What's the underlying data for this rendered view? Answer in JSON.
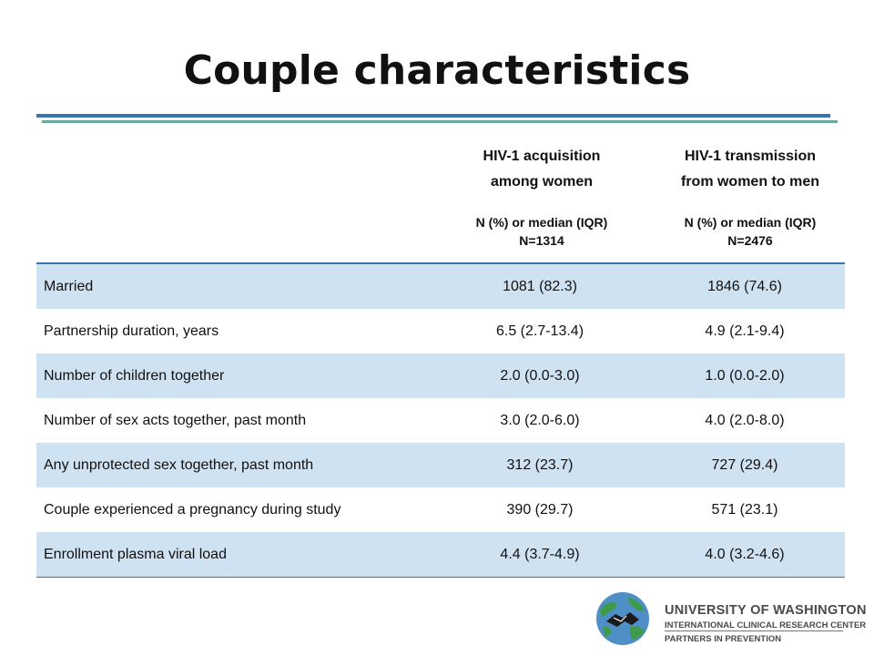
{
  "slide": {
    "title": "Couple characteristics"
  },
  "table": {
    "columns": [
      {
        "heading_line1": "HIV-1 acquisition",
        "heading_line2": "among women",
        "sub_line1": "N (%) or median (IQR)",
        "sub_line2": "N=1314"
      },
      {
        "heading_line1": "HIV-1 transmission",
        "heading_line2": "from women to men",
        "sub_line1": "N (%) or median (IQR)",
        "sub_line2": "N=2476"
      }
    ],
    "rows": [
      {
        "label": "Married",
        "acquisition": "1081 (82.3)",
        "transmission": "1846 (74.6)"
      },
      {
        "label": "Partnership duration, years",
        "acquisition": "6.5 (2.7-13.4)",
        "transmission": "4.9 (2.1-9.4)"
      },
      {
        "label": "Number of children together",
        "acquisition": "2.0 (0.0-3.0)",
        "transmission": "1.0 (0.0-2.0)"
      },
      {
        "label": "Number of sex acts together, past month",
        "acquisition": "3.0 (2.0-6.0)",
        "transmission": "4.0 (2.0-8.0)"
      },
      {
        "label": "Any unprotected sex together, past month",
        "acquisition": "312 (23.7)",
        "transmission": "727 (29.4)"
      },
      {
        "label": "Couple experienced a pregnancy during study",
        "acquisition": "390 (29.7)",
        "transmission": "571 (23.1)"
      },
      {
        "label": "Enrollment plasma viral load",
        "acquisition": "4.4 (3.7-4.9)",
        "transmission": "4.0 (3.2-4.6)"
      }
    ]
  },
  "logo": {
    "line1": "UNIVERSITY OF WASHINGTON",
    "line2": "INTERNATIONAL CLINICAL RESEARCH CENTER",
    "line3": "PARTNERS IN PREVENTION",
    "icon": "handshake-globe-icon"
  },
  "colors": {
    "accent": "#3a73ad",
    "secondary_rule": "#6aaa9e",
    "row_shade": "#cfe2f1"
  }
}
